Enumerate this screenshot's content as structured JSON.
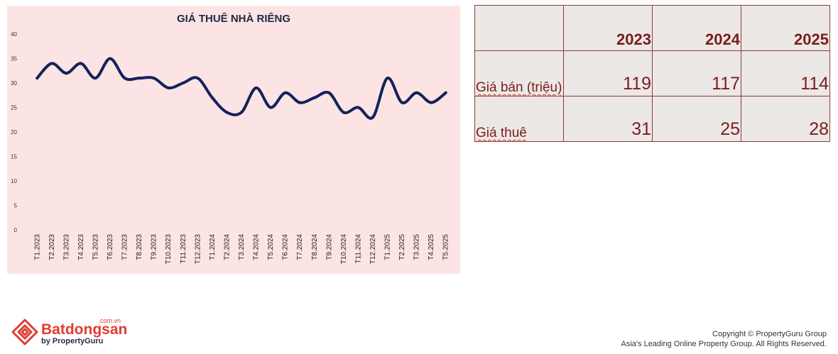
{
  "chart_data": {
    "type": "line",
    "title": "GIÁ THUÊ NHÀ RIÊNG",
    "xlabel": "",
    "ylabel": "",
    "ylim": [
      0,
      40
    ],
    "yticks": [
      "0",
      "5",
      "10",
      "15",
      "20",
      "25",
      "30",
      "35",
      "40"
    ],
    "grid": false,
    "categories": [
      "T1.2023",
      "T2.2023",
      "T3.2023",
      "T4.2023",
      "T5.2023",
      "T6.2023",
      "T7.2023",
      "T8.2023",
      "T9.2023",
      "T10.2023",
      "T11.2023",
      "T12.2023",
      "T1.2024",
      "T2.2024",
      "T3.2024",
      "T4.2024",
      "T5.2024",
      "T6.2024",
      "T7.2024",
      "T8.2024",
      "T9.2024",
      "T10.2024",
      "T11.2024",
      "T12.2024",
      "T1.2025",
      "T2.2025",
      "T3.2025",
      "T4.2025",
      "T5.2025"
    ],
    "series": [
      {
        "values": [
          31,
          34,
          32,
          34,
          31,
          35,
          31,
          31,
          31,
          29,
          30,
          31,
          27,
          24,
          24,
          29,
          25,
          28,
          26,
          27,
          28,
          24,
          25,
          23,
          31,
          26,
          28,
          26,
          28
        ]
      }
    ],
    "line_color": "#13235b",
    "background_color": "#fce4e4"
  },
  "table": {
    "header": [
      "",
      "2023",
      "2024",
      "2025"
    ],
    "rows": [
      {
        "label": "Giá bán (triệu)",
        "values": [
          "119",
          "117",
          "114"
        ]
      },
      {
        "label": "Giá thuê",
        "values": [
          "31",
          "25",
          "28"
        ]
      }
    ],
    "text_color": "#7a1d1d"
  },
  "logo": {
    "name": "Batdongsan",
    "domain": ".com.vn",
    "byline": "by PropertyGuru",
    "icon": "batdongsan-house-icon",
    "color": "#e03c31"
  },
  "copyright": {
    "line1": "Copyright © PropertyGuru Group",
    "line2": "Asia's Leading Online Property Group. All Rights Reserved."
  }
}
